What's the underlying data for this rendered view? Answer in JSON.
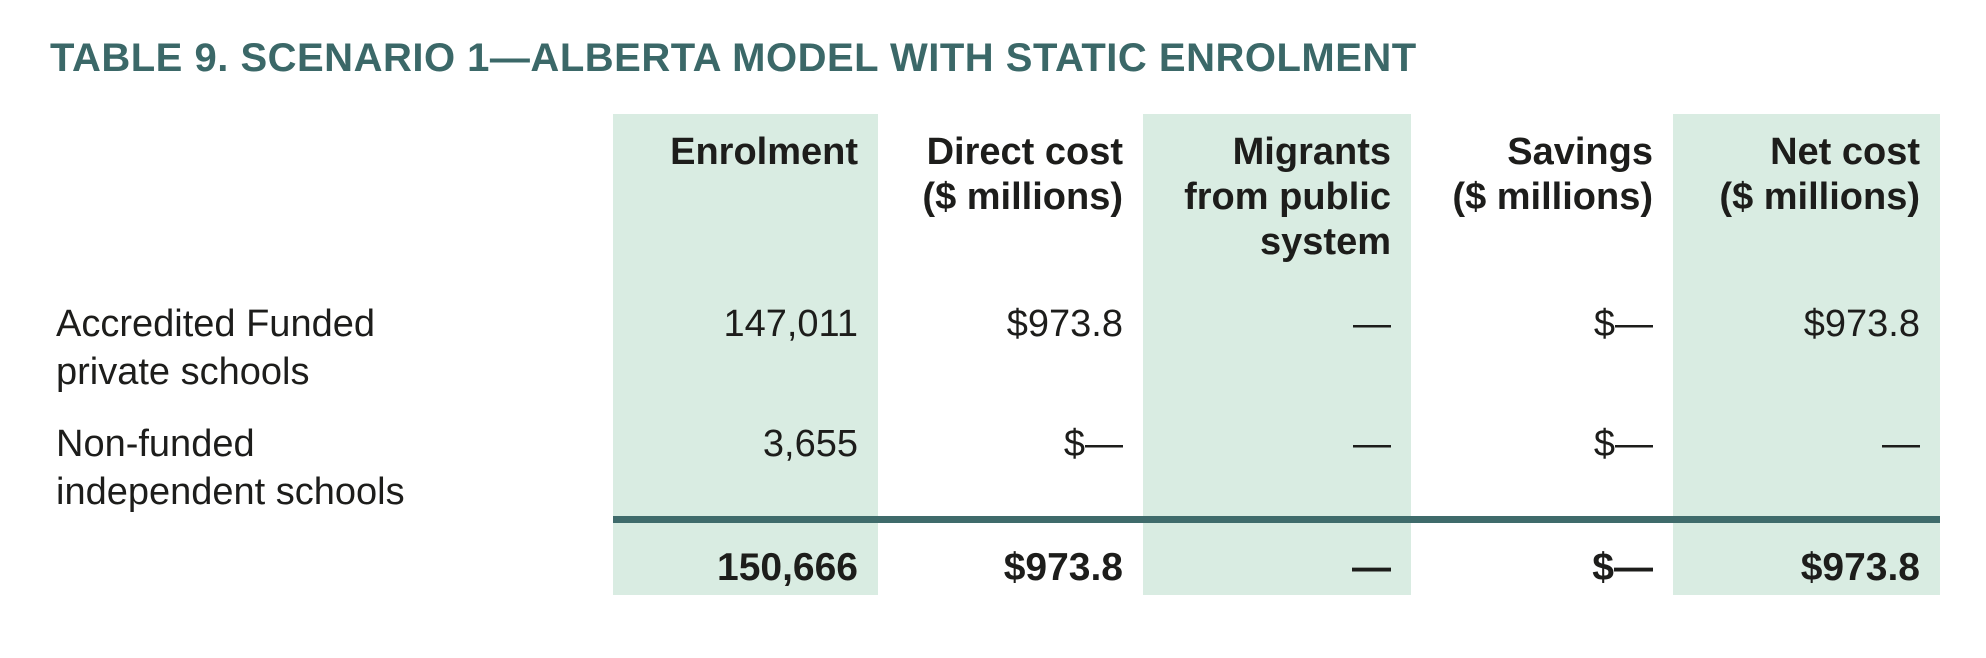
{
  "page": {
    "title": "TABLE 9. SCENARIO 1—ALBERTA MODEL WITH STATIC ENROLMENT"
  },
  "table": {
    "col_headers": [
      {
        "lines": [
          "Enrolment",
          "",
          ""
        ]
      },
      {
        "lines": [
          "Direct cost",
          "($ millions)",
          ""
        ]
      },
      {
        "lines": [
          "Migrants",
          "from public",
          "system"
        ]
      },
      {
        "lines": [
          "Savings",
          "($ millions)",
          ""
        ]
      },
      {
        "lines": [
          "Net cost",
          "($ millions)",
          ""
        ]
      }
    ],
    "rows": [
      {
        "label_lines": [
          "Accredited Funded",
          "private schools"
        ],
        "enrolment": "147,011",
        "direct_cost": "$973.8",
        "migrants": "—",
        "savings": "$—",
        "net_cost": "$973.8"
      },
      {
        "label_lines": [
          "Non-funded",
          "independent schools"
        ],
        "enrolment": "3,655",
        "direct_cost": "$—",
        "migrants": "—",
        "savings": "$—",
        "net_cost": "—"
      }
    ],
    "total_row": {
      "enrolment": "150,666",
      "direct_cost": "$973.8",
      "migrants": "—",
      "savings": "$—",
      "net_cost": "$973.8"
    }
  },
  "colors": {
    "title_teal": "#3B6868",
    "column_band_green": "#D9ECE2",
    "total_rule_teal": "#3F6B6B",
    "body_text": "#1D1D1B"
  }
}
